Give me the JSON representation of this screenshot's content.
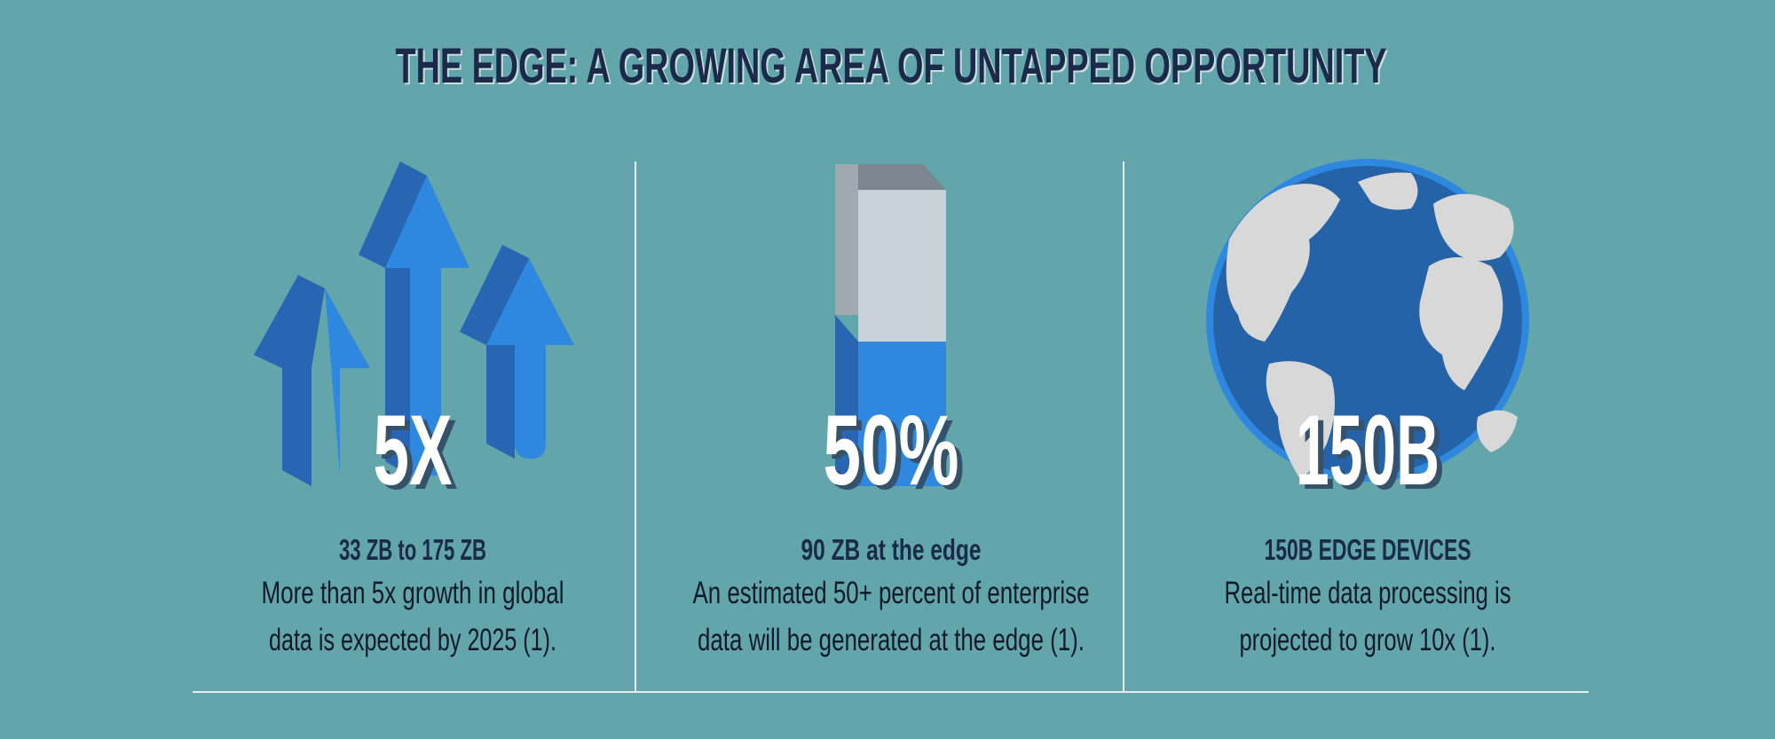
{
  "title": "THE EDGE: A GROWING AREA OF UNTAPPED OPPORTUNITY",
  "panels": [
    {
      "stat": "5X",
      "heading": "33 ZB to 175 ZB",
      "lines": [
        "More than 5x growth in global",
        "data is expected by 2025 (1)."
      ]
    },
    {
      "stat": "50%",
      "heading": "90 ZB at the edge",
      "lines": [
        "An estimated 50+ percent of enterprise",
        "data will be generated at the edge (1)."
      ]
    },
    {
      "stat": "150B",
      "heading": "150B EDGE DEVICES",
      "lines": [
        "Real-time data processing is",
        "projected to grow 10x (1)."
      ]
    }
  ]
}
